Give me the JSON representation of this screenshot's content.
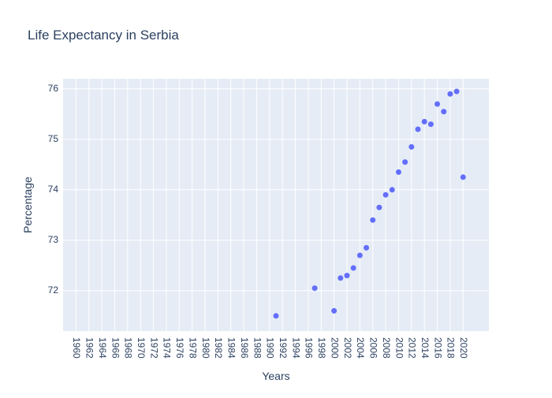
{
  "chart_data": {
    "type": "scatter",
    "title": "Life Expectancy in Serbia",
    "xlabel": "Years",
    "ylabel": "Percentage",
    "xlim": [
      1958,
      2024
    ],
    "ylim": [
      71.2,
      76.2
    ],
    "x_ticks": [
      1960,
      1962,
      1964,
      1966,
      1968,
      1970,
      1972,
      1974,
      1976,
      1978,
      1980,
      1982,
      1984,
      1986,
      1988,
      1990,
      1992,
      1994,
      1996,
      1998,
      2000,
      2002,
      2004,
      2006,
      2008,
      2010,
      2012,
      2014,
      2016,
      2018,
      2020
    ],
    "y_ticks": [
      72,
      73,
      74,
      75,
      76
    ],
    "grid": true,
    "colors": {
      "marker": "#636efa",
      "plot_bg": "#e5ecf6",
      "grid": "#ffffff",
      "text": "#2a3f5f"
    },
    "series": [
      {
        "x": [
          1991,
          1997,
          2000,
          2001,
          2002,
          2003,
          2004,
          2005,
          2006,
          2007,
          2008,
          2009,
          2010,
          2011,
          2012,
          2013,
          2014,
          2015,
          2016,
          2017,
          2018,
          2019,
          2020
        ],
        "y": [
          71.5,
          72.05,
          71.6,
          72.25,
          72.3,
          72.45,
          72.7,
          72.85,
          73.4,
          73.65,
          73.9,
          74.0,
          74.35,
          74.55,
          74.85,
          75.2,
          75.35,
          75.3,
          75.7,
          75.55,
          75.9,
          75.95,
          74.25
        ]
      }
    ]
  }
}
